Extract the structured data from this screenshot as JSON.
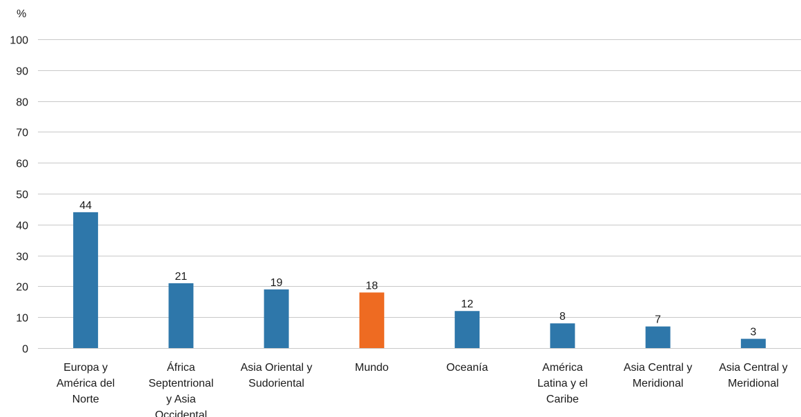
{
  "chart_data": {
    "type": "bar",
    "y_unit": "%",
    "ylim": [
      0,
      100
    ],
    "yticks": [
      0,
      10,
      20,
      30,
      40,
      50,
      60,
      70,
      80,
      90,
      100
    ],
    "grid": true,
    "categories": [
      "Europa y América del Norte",
      "África Septentrional y Asia Occidental",
      "Asia Oriental y Sudoriental",
      "Mundo",
      "Oceanía",
      "América Latina y el Caribe",
      "Asia Central y Meridional",
      "Asia Central y Meridional"
    ],
    "category_label_lines": [
      [
        "Europa y",
        "América del",
        "Norte"
      ],
      [
        "África",
        "Septentrional",
        "y Asia",
        "Occidental"
      ],
      [
        "Asia Oriental y",
        "Sudoriental"
      ],
      [
        "Mundo"
      ],
      [
        "Oceanía"
      ],
      [
        "América",
        "Latina y el",
        "Caribe"
      ],
      [
        "Asia Central y",
        "Meridional"
      ],
      [
        "Asia Central y",
        "Meridional"
      ]
    ],
    "values": [
      44,
      21,
      19,
      18,
      12,
      8,
      7,
      3
    ],
    "data_labels": [
      "44",
      "21",
      "19",
      "18",
      "12",
      "8",
      "7",
      "3"
    ],
    "bar_colors": [
      "#2e77aa",
      "#2e77aa",
      "#2e77aa",
      "#ee6b22",
      "#2e77aa",
      "#2e77aa",
      "#2e77aa",
      "#2e77aa"
    ],
    "colors": {
      "primary": "#2e77aa",
      "highlight": "#ee6b22",
      "grid": "#c8c8c8"
    }
  }
}
